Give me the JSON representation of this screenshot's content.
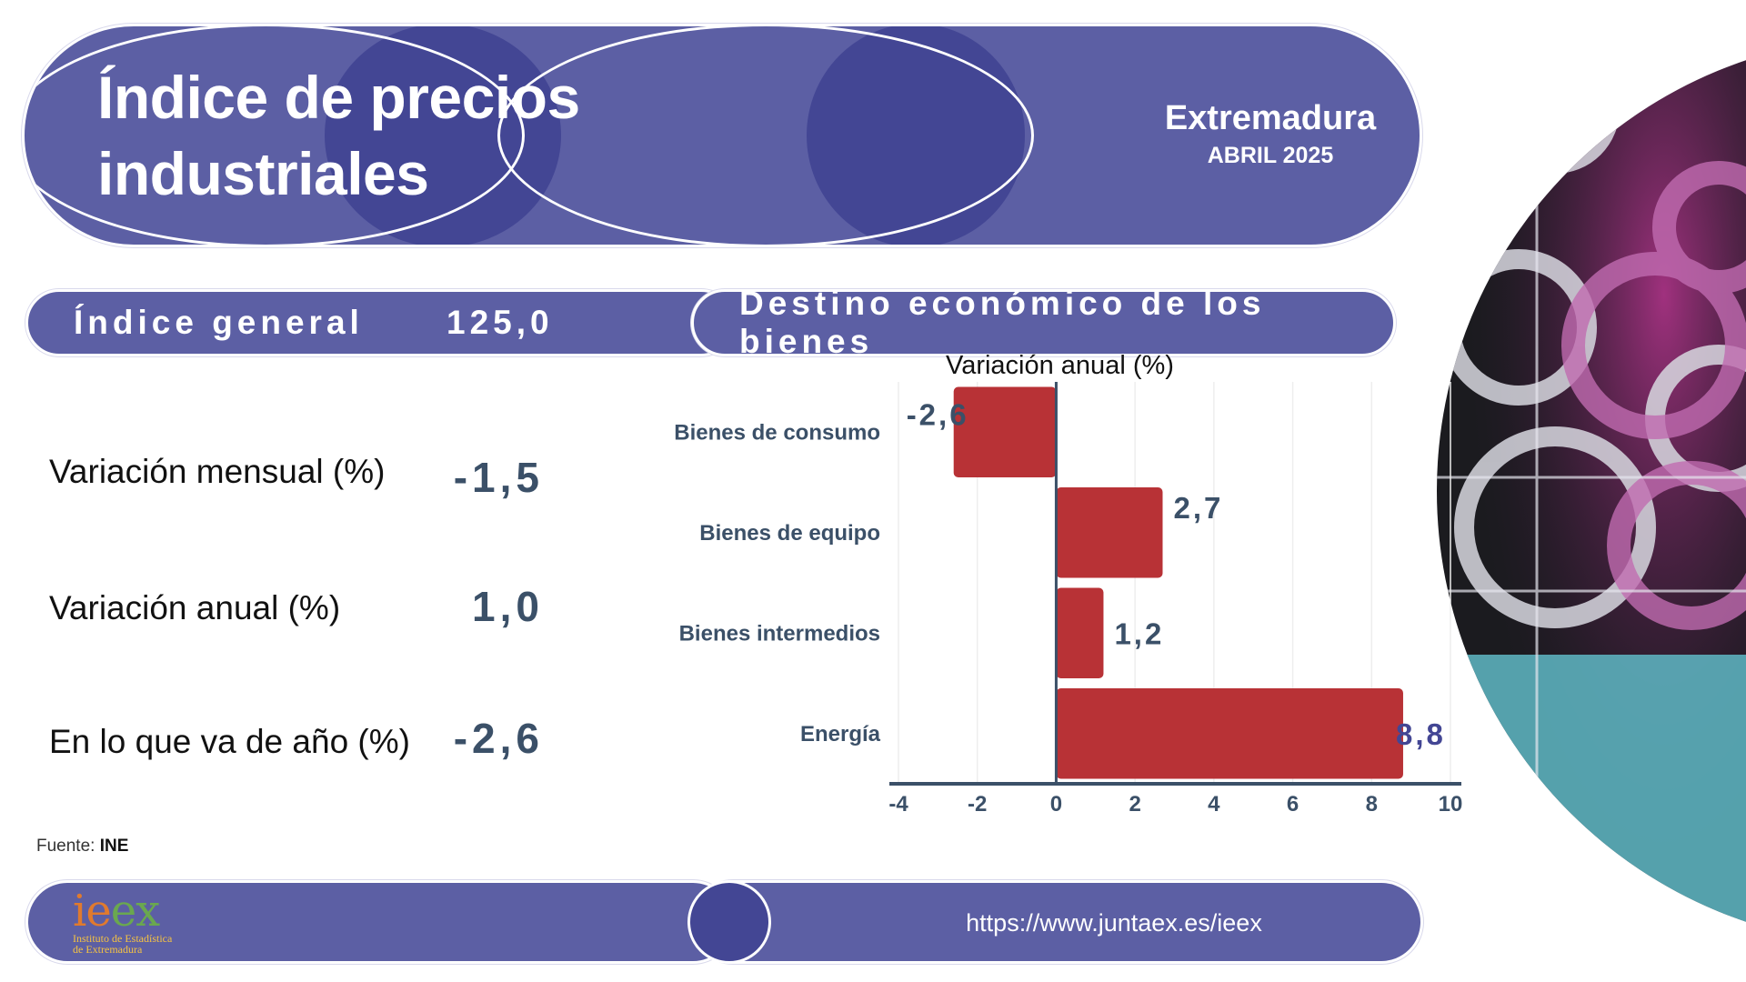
{
  "header": {
    "title_line1": "Índice de precios",
    "title_line2": "industriales",
    "region": "Extremadura",
    "date": "ABRIL 2025"
  },
  "general_index": {
    "label": "Índice general",
    "value": "125,0"
  },
  "section_title": "Destino económico de los bienes",
  "stats": [
    {
      "label": "Variación mensual (%)",
      "value": "-1,5"
    },
    {
      "label": "Variación anual (%)",
      "value": "1,0"
    },
    {
      "label": "En lo que  va de año (%)",
      "value": "-2,6"
    }
  ],
  "source": {
    "prefix": "Fuente:",
    "name": "INE"
  },
  "footer": {
    "url": "https://www.juntaex.es/ieex",
    "logo_word": "ieex",
    "logo_line1": "Instituto de Estadística",
    "logo_line2": "de Extremadura"
  },
  "colors": {
    "primary": "#5c5fa4",
    "primary_dark": "#434694",
    "bar": "#b83236",
    "value_text": "#3b5068",
    "label_text": "#3b5068"
  },
  "chart_data": {
    "type": "bar",
    "orientation": "horizontal",
    "title": "Variación anual (%)",
    "categories": [
      "Bienes de consumo",
      "Bienes de equipo",
      "Bienes intermedios",
      "Energía"
    ],
    "values": [
      -2.6,
      2.7,
      1.2,
      8.8
    ],
    "data_labels": [
      "-2,6",
      "2,7",
      "1,2",
      "8,8"
    ],
    "xlim": [
      -4,
      10
    ],
    "xticks": [
      -4,
      -2,
      0,
      2,
      4,
      6,
      8,
      10
    ],
    "grid": true
  }
}
